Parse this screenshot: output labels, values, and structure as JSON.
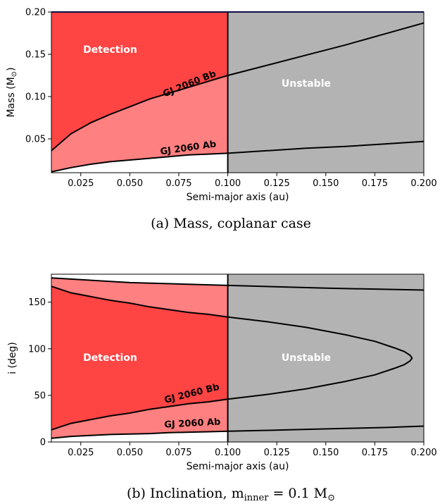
{
  "chart_data": [
    {
      "type": "area",
      "panel": "top",
      "caption": "(a) Mass, coplanar case",
      "xlabel": "Semi-major axis (au)",
      "ylabel_main": "Mass (M",
      "ylabel_sub": "⊙",
      "ylabel_close": ")",
      "xlim": [
        0.01,
        0.2
      ],
      "ylim": [
        0.01,
        0.2
      ],
      "xticks": [
        "0.025",
        "0.050",
        "0.075",
        "0.100",
        "0.125",
        "0.150",
        "0.175",
        "0.200"
      ],
      "xtick_values": [
        0.025,
        0.05,
        0.075,
        0.1,
        0.125,
        0.15,
        0.175,
        0.2
      ],
      "yticks": [
        "0.05",
        "0.10",
        "0.15",
        "0.20"
      ],
      "ytick_values": [
        0.05,
        0.1,
        0.15,
        0.2
      ],
      "boundary_x": 0.1,
      "regions": [
        {
          "label": "Detection",
          "x": 0.04,
          "y": 0.155
        },
        {
          "label": "Unstable",
          "x": 0.14,
          "y": 0.115
        }
      ],
      "colors": {
        "detection": "#ff4444",
        "light": "#ff8080",
        "unstable": "#b3b3b3",
        "white": "#ffffff"
      },
      "series": [
        {
          "name": "GJ 2060 Bb",
          "x": [
            0.01,
            0.02,
            0.03,
            0.04,
            0.05,
            0.06,
            0.07,
            0.08,
            0.09,
            0.1,
            0.12,
            0.14,
            0.16,
            0.18,
            0.2
          ],
          "y": [
            0.036,
            0.056,
            0.069,
            0.079,
            0.088,
            0.097,
            0.104,
            0.111,
            0.118,
            0.125,
            0.137,
            0.149,
            0.161,
            0.174,
            0.187
          ],
          "label_x": 0.081,
          "label_y": 0.112
        },
        {
          "name": "GJ 2060 Ab",
          "x": [
            0.01,
            0.02,
            0.03,
            0.04,
            0.05,
            0.06,
            0.07,
            0.08,
            0.09,
            0.1,
            0.12,
            0.14,
            0.16,
            0.18,
            0.2
          ],
          "y": [
            0.011,
            0.016,
            0.02,
            0.023,
            0.025,
            0.027,
            0.029,
            0.031,
            0.032,
            0.033,
            0.036,
            0.039,
            0.041,
            0.044,
            0.047
          ],
          "label_x": 0.08,
          "label_y": 0.036
        }
      ]
    },
    {
      "type": "area",
      "panel": "bottom",
      "caption_main": "(b) Inclination, m",
      "caption_sub": "inner",
      "caption_mid": " = 0.1 M",
      "caption_sub2": "⊙",
      "xlabel": "Semi-major axis (au)",
      "ylabel": "i (deg)",
      "xlim": [
        0.01,
        0.2
      ],
      "ylim": [
        0,
        180
      ],
      "xticks": [
        "0.025",
        "0.050",
        "0.075",
        "0.100",
        "0.125",
        "0.150",
        "0.175",
        "0.200"
      ],
      "xtick_values": [
        0.025,
        0.05,
        0.075,
        0.1,
        0.125,
        0.15,
        0.175,
        0.2
      ],
      "yticks": [
        "0",
        "50",
        "100",
        "150"
      ],
      "ytick_values": [
        0,
        50,
        100,
        150
      ],
      "boundary_x": 0.1,
      "regions": [
        {
          "label": "Detection",
          "x": 0.04,
          "y": 90
        },
        {
          "label": "Unstable",
          "x": 0.14,
          "y": 90
        }
      ],
      "colors": {
        "detection": "#ff4444",
        "light": "#ff8080",
        "unstable": "#b3b3b3",
        "white": "#ffffff"
      },
      "series": [
        {
          "name": "GJ 2060 Bb",
          "x": [
            0.01,
            0.02,
            0.03,
            0.04,
            0.05,
            0.06,
            0.07,
            0.08,
            0.09,
            0.1,
            0.12,
            0.14,
            0.16,
            0.175,
            0.185,
            0.19,
            0.193,
            0.194,
            0.193,
            0.19,
            0.185,
            0.175,
            0.16,
            0.14,
            0.12,
            0.1,
            0.09,
            0.08,
            0.07,
            0.06,
            0.05,
            0.04,
            0.03,
            0.02,
            0.01
          ],
          "y": [
            13,
            20,
            24,
            28,
            31,
            35,
            38,
            41,
            43,
            46,
            51,
            57,
            65,
            72,
            79,
            83,
            87,
            90,
            93,
            97,
            101,
            108,
            115,
            123,
            129,
            134,
            137,
            139,
            142,
            145,
            149,
            152,
            156,
            160,
            167
          ],
          "label_x": 0.082,
          "label_y": 49
        },
        {
          "name": "GJ 2060 Ab",
          "x": [
            0.01,
            0.02,
            0.03,
            0.04,
            0.05,
            0.06,
            0.07,
            0.08,
            0.09,
            0.1,
            0.12,
            0.14,
            0.16,
            0.18,
            0.2
          ],
          "y": [
            4,
            6,
            7,
            8,
            8.5,
            9,
            10,
            10.5,
            11,
            11.5,
            12.5,
            13.5,
            14.5,
            15.5,
            17
          ],
          "label_x": 0.082,
          "label_y": 17
        },
        {
          "name": "",
          "x": [
            0.01,
            0.05,
            0.1,
            0.15,
            0.2
          ],
          "y": [
            176,
            171,
            168,
            165,
            163
          ]
        }
      ]
    }
  ]
}
